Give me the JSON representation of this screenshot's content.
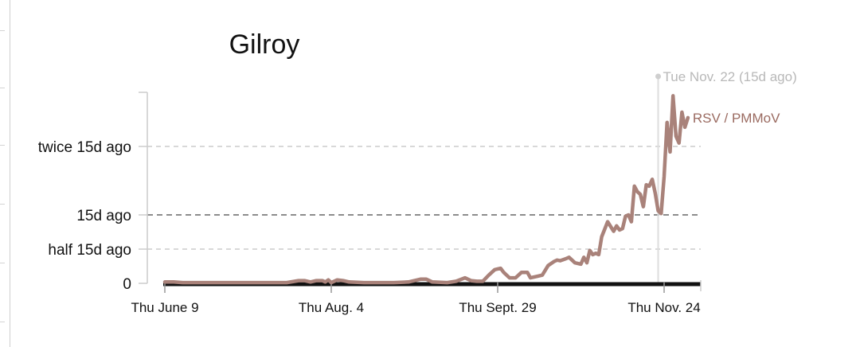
{
  "chart_data": {
    "type": "line",
    "title": "Gilroy",
    "xlabel": "",
    "ylabel": "",
    "x_ticks": [
      "Thu June 9",
      "Thu Aug. 4",
      "Thu Sept. 29",
      "Thu Nov. 24"
    ],
    "y_ticks": [
      {
        "label": "0",
        "value": 0
      },
      {
        "label": "half 15d ago",
        "value": 0.5
      },
      {
        "label": "15d ago",
        "value": 1.0
      },
      {
        "label": "twice 15d ago",
        "value": 2.0
      }
    ],
    "ylim": [
      0,
      2.8
    ],
    "xlim": [
      "2022-06-09",
      "2022-11-28"
    ],
    "reference_line": {
      "label": "15d ago",
      "value": 1.0,
      "style": "dashed"
    },
    "marker": {
      "date": "2022-11-22",
      "label": "Tue Nov. 22 (15d ago)"
    },
    "grid": true,
    "series": [
      {
        "name": "RSV / PMMoV",
        "color": "#a9827a",
        "label_color": "#9a6a60",
        "points": [
          [
            "2022-06-09",
            0.02
          ],
          [
            "2022-06-12",
            0.02
          ],
          [
            "2022-06-15",
            0.01
          ],
          [
            "2022-06-20",
            0.01
          ],
          [
            "2022-06-25",
            0.01
          ],
          [
            "2022-06-30",
            0.01
          ],
          [
            "2022-07-05",
            0.01
          ],
          [
            "2022-07-10",
            0.01
          ],
          [
            "2022-07-15",
            0.01
          ],
          [
            "2022-07-20",
            0.01
          ],
          [
            "2022-07-24",
            0.04
          ],
          [
            "2022-07-26",
            0.04
          ],
          [
            "2022-07-28",
            0.02
          ],
          [
            "2022-07-30",
            0.04
          ],
          [
            "2022-08-01",
            0.04
          ],
          [
            "2022-08-02",
            0.02
          ],
          [
            "2022-08-03",
            0.05
          ],
          [
            "2022-08-04",
            0.01
          ],
          [
            "2022-08-06",
            0.05
          ],
          [
            "2022-08-08",
            0.04
          ],
          [
            "2022-08-10",
            0.02
          ],
          [
            "2022-08-15",
            0.01
          ],
          [
            "2022-08-20",
            0.01
          ],
          [
            "2022-08-25",
            0.01
          ],
          [
            "2022-08-30",
            0.02
          ],
          [
            "2022-09-03",
            0.06
          ],
          [
            "2022-09-05",
            0.06
          ],
          [
            "2022-09-07",
            0.02
          ],
          [
            "2022-09-12",
            0.01
          ],
          [
            "2022-09-15",
            0.03
          ],
          [
            "2022-09-18",
            0.08
          ],
          [
            "2022-09-20",
            0.04
          ],
          [
            "2022-09-22",
            0.03
          ],
          [
            "2022-09-24",
            0.03
          ],
          [
            "2022-09-26",
            0.12
          ],
          [
            "2022-09-28",
            0.2
          ],
          [
            "2022-09-30",
            0.22
          ],
          [
            "2022-10-01",
            0.16
          ],
          [
            "2022-10-03",
            0.08
          ],
          [
            "2022-10-05",
            0.08
          ],
          [
            "2022-10-07",
            0.16
          ],
          [
            "2022-10-09",
            0.16
          ],
          [
            "2022-10-10",
            0.08
          ],
          [
            "2022-10-12",
            0.1
          ],
          [
            "2022-10-14",
            0.12
          ],
          [
            "2022-10-16",
            0.26
          ],
          [
            "2022-10-18",
            0.32
          ],
          [
            "2022-10-19",
            0.34
          ],
          [
            "2022-10-20",
            0.33
          ],
          [
            "2022-10-22",
            0.36
          ],
          [
            "2022-10-23",
            0.38
          ],
          [
            "2022-10-25",
            0.3
          ],
          [
            "2022-10-27",
            0.28
          ],
          [
            "2022-10-28",
            0.38
          ],
          [
            "2022-10-29",
            0.3
          ],
          [
            "2022-10-30",
            0.48
          ],
          [
            "2022-10-31",
            0.42
          ],
          [
            "2022-11-01",
            0.44
          ],
          [
            "2022-11-02",
            0.42
          ],
          [
            "2022-11-03",
            0.68
          ],
          [
            "2022-11-05",
            0.9
          ],
          [
            "2022-11-07",
            0.76
          ],
          [
            "2022-11-08",
            0.84
          ],
          [
            "2022-11-09",
            0.78
          ],
          [
            "2022-11-10",
            0.8
          ],
          [
            "2022-11-11",
            0.98
          ],
          [
            "2022-11-12",
            1.0
          ],
          [
            "2022-11-13",
            0.9
          ],
          [
            "2022-11-14",
            1.42
          ],
          [
            "2022-11-15",
            1.34
          ],
          [
            "2022-11-16",
            1.3
          ],
          [
            "2022-11-17",
            1.12
          ],
          [
            "2022-11-18",
            1.44
          ],
          [
            "2022-11-19",
            1.42
          ],
          [
            "2022-11-20",
            1.52
          ],
          [
            "2022-11-21",
            1.32
          ],
          [
            "2022-11-22",
            1.06
          ],
          [
            "2022-11-23",
            1.02
          ],
          [
            "2022-11-24",
            1.56
          ],
          [
            "2022-11-25",
            2.35
          ],
          [
            "2022-11-26",
            1.92
          ],
          [
            "2022-11-27",
            2.74
          ],
          [
            "2022-11-28",
            2.15
          ],
          [
            "2022-11-29",
            2.05
          ],
          [
            "2022-11-30",
            2.5
          ],
          [
            "2022-12-01",
            2.28
          ],
          [
            "2022-12-02",
            2.42
          ]
        ]
      }
    ]
  }
}
